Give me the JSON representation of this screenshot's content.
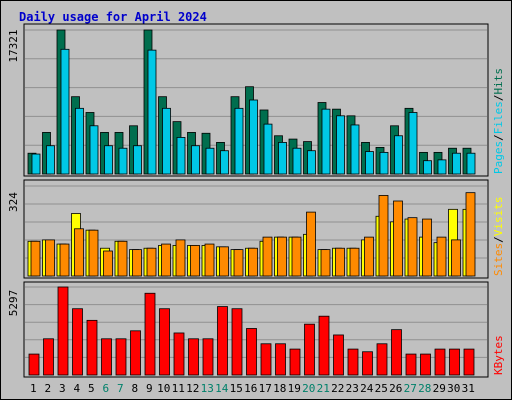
{
  "title": "Daily usage for April 2024",
  "colors": {
    "hits": "#006e4e",
    "files": "#00c8e6",
    "sites": "#ff8a00",
    "visits": "#ffff00",
    "kbytes": "#ff0000",
    "day_label": "#000000",
    "weekend_label": "#00806a",
    "grid": "#909090",
    "panel_bg": "#c0c0c0"
  },
  "chart_data": [
    {
      "type": "bar",
      "panel": "hits-files-pages",
      "legend": [
        "Pages",
        "/",
        "Files",
        "/",
        "Hits"
      ],
      "ymax_label": "17321",
      "ylim": [
        0,
        17321
      ],
      "grid": true,
      "categories": [
        "1",
        "2",
        "3",
        "4",
        "5",
        "6",
        "7",
        "8",
        "9",
        "10",
        "11",
        "12",
        "13",
        "14",
        "15",
        "16",
        "17",
        "18",
        "19",
        "20",
        "21",
        "22",
        "23",
        "24",
        "25",
        "26",
        "27",
        "28",
        "29",
        "30",
        "31"
      ],
      "weekend": [
        6,
        7,
        13,
        14,
        20,
        21,
        27,
        28
      ],
      "series": [
        {
          "name": "Hits",
          "color": "hits",
          "values": [
            2500,
            5000,
            17321,
            9300,
            7400,
            5000,
            5000,
            5800,
            17321,
            9300,
            6300,
            5000,
            4900,
            3800,
            9300,
            10500,
            7700,
            4600,
            4200,
            3900,
            8600,
            7800,
            7000,
            3800,
            3200,
            5800,
            7900,
            2600,
            2600,
            3100,
            3100
          ]
        },
        {
          "name": "Files",
          "color": "files",
          "values": [
            2400,
            3400,
            15000,
            7900,
            5800,
            3400,
            3100,
            3400,
            14900,
            7900,
            4400,
            3400,
            3100,
            2800,
            7900,
            8900,
            6000,
            3800,
            3100,
            2800,
            7800,
            7000,
            5900,
            2700,
            2600,
            4600,
            7400,
            1600,
            1700,
            2500,
            2500
          ]
        }
      ]
    },
    {
      "type": "bar",
      "panel": "sites-visits",
      "legend": [
        "Sites",
        "/",
        "Visits"
      ],
      "ymax_label": "324",
      "ylim": [
        0,
        324
      ],
      "grid": true,
      "categories": [
        "1",
        "2",
        "3",
        "4",
        "5",
        "6",
        "7",
        "8",
        "9",
        "10",
        "11",
        "12",
        "13",
        "14",
        "15",
        "16",
        "17",
        "18",
        "19",
        "20",
        "21",
        "22",
        "23",
        "24",
        "25",
        "26",
        "27",
        "28",
        "29",
        "30",
        "31"
      ],
      "weekend": [
        6,
        7,
        13,
        14,
        20,
        21,
        27,
        28
      ],
      "series": [
        {
          "name": "Visits",
          "color": "visits",
          "values": [
            125,
            130,
            115,
            225,
            165,
            100,
            125,
            95,
            100,
            110,
            110,
            110,
            110,
            105,
            95,
            100,
            125,
            140,
            140,
            150,
            95,
            100,
            100,
            130,
            215,
            195,
            205,
            140,
            120,
            240,
            240
          ]
        },
        {
          "name": "Sites",
          "color": "sites",
          "values": [
            125,
            130,
            115,
            170,
            165,
            90,
            125,
            95,
            100,
            115,
            130,
            110,
            115,
            105,
            95,
            100,
            140,
            140,
            140,
            230,
            95,
            100,
            100,
            140,
            290,
            270,
            210,
            205,
            140,
            130,
            300
          ]
        }
      ]
    },
    {
      "type": "bar",
      "panel": "kbytes",
      "legend": [
        "KBytes"
      ],
      "ymax_label": "5297",
      "ylim": [
        0,
        5297
      ],
      "grid": true,
      "categories": [
        "1",
        "2",
        "3",
        "4",
        "5",
        "6",
        "7",
        "8",
        "9",
        "10",
        "11",
        "12",
        "13",
        "14",
        "15",
        "16",
        "17",
        "18",
        "19",
        "20",
        "21",
        "22",
        "23",
        "24",
        "25",
        "26",
        "27",
        "28",
        "29",
        "30",
        "31"
      ],
      "weekend": [
        6,
        7,
        13,
        14,
        20,
        21,
        27,
        28
      ],
      "series": [
        {
          "name": "KBytes",
          "color": "kbytes",
          "values": [
            1260,
            2180,
            5297,
            3990,
            3290,
            2180,
            2180,
            2660,
            4920,
            3990,
            2530,
            2180,
            2180,
            4120,
            3990,
            2800,
            1880,
            1880,
            1560,
            3060,
            3540,
            2410,
            1560,
            1400,
            1880,
            2730,
            1260,
            1260,
            1560,
            1560,
            1560
          ]
        }
      ]
    }
  ]
}
